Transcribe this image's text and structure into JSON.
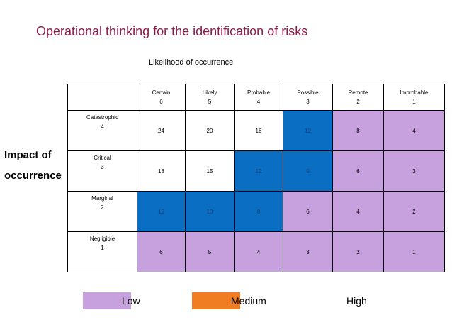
{
  "title": "Operational thinking for the identification of risks",
  "x_axis_label": "Likelihood of occurrence",
  "y_axis_label_line1": "Impact of",
  "y_axis_label_line2": "occurrence",
  "columns": [
    {
      "name": "Certain",
      "score": "6"
    },
    {
      "name": "Likely",
      "score": "5"
    },
    {
      "name": "Probable",
      "score": "4"
    },
    {
      "name": "Possible",
      "score": "3"
    },
    {
      "name": "Remote",
      "score": "2"
    },
    {
      "name": "Improbable",
      "score": "1"
    }
  ],
  "rows": [
    {
      "name": "Catastrophic",
      "score": "4",
      "cells": [
        {
          "value": "24",
          "level": "none"
        },
        {
          "value": "20",
          "level": "none"
        },
        {
          "value": "16",
          "level": "none"
        },
        {
          "value": "12",
          "level": "high"
        },
        {
          "value": "8",
          "level": "low"
        },
        {
          "value": "4",
          "level": "low"
        }
      ]
    },
    {
      "name": "Critical",
      "score": "3",
      "cells": [
        {
          "value": "18",
          "level": "none"
        },
        {
          "value": "15",
          "level": "none"
        },
        {
          "value": "12",
          "level": "high"
        },
        {
          "value": "9",
          "level": "high"
        },
        {
          "value": "6",
          "level": "low"
        },
        {
          "value": "3",
          "level": "low"
        }
      ]
    },
    {
      "name": "Marginal",
      "score": "2",
      "cells": [
        {
          "value": "12",
          "level": "high"
        },
        {
          "value": "10",
          "level": "high"
        },
        {
          "value": "8",
          "level": "high"
        },
        {
          "value": "6",
          "level": "low"
        },
        {
          "value": "4",
          "level": "low"
        },
        {
          "value": "2",
          "level": "low"
        }
      ]
    },
    {
      "name": "Negligible",
      "score": "1",
      "cells": [
        {
          "value": "6",
          "level": "low"
        },
        {
          "value": "5",
          "level": "low"
        },
        {
          "value": "4",
          "level": "low"
        },
        {
          "value": "3",
          "level": "low"
        },
        {
          "value": "2",
          "level": "low"
        },
        {
          "value": "1",
          "level": "low"
        }
      ]
    }
  ],
  "legend": [
    {
      "label": "Low",
      "color": "#c6a1de"
    },
    {
      "label": "Medium",
      "color": "#f07d22"
    },
    {
      "label": "High",
      "color": ""
    }
  ]
}
